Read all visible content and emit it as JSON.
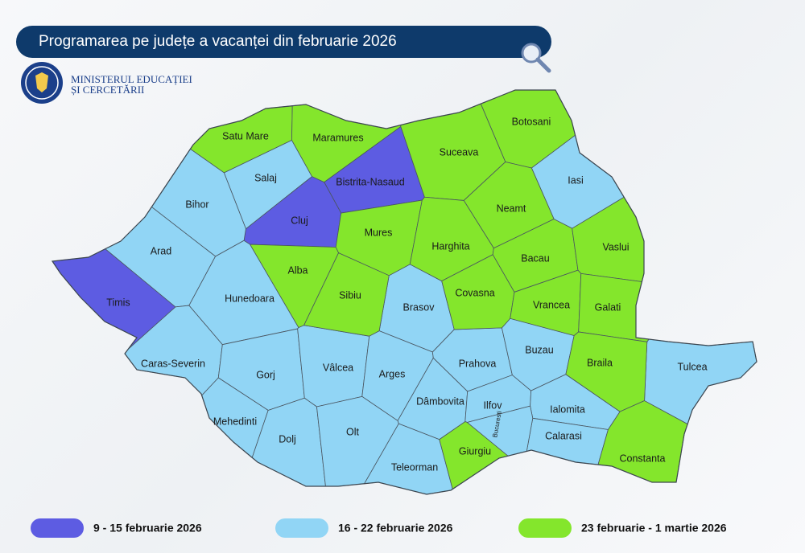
{
  "header": {
    "title": "Programarea pe județe a vacanței din februarie 2026",
    "ministry": [
      "MINISTERUL EDUCAȚIEI",
      "ȘI CERCETĂRII"
    ]
  },
  "legend": [
    {
      "label": "9 - 15 februarie 2026",
      "color": "#5d5ce2",
      "counties": [
        "Bistrita-Nasaud",
        "Cluj",
        "Timis"
      ]
    },
    {
      "label": "16 - 22 februarie 2026",
      "color": "#91d5f5",
      "counties": [
        "Iasi",
        "Salaj",
        "Bihor",
        "Arad",
        "Hunedoara",
        "Brasov",
        "Caras-Severin",
        "Gorj",
        "Vâlcea",
        "Arges",
        "Prahova",
        "Buzau",
        "Tulcea",
        "Mehedinti",
        "Dâmbovita",
        "Ilfov",
        "Ialomita",
        "Dolj",
        "Olt",
        "Calarasi",
        "Teleorman",
        "Bucuresti"
      ]
    },
    {
      "label": "23 februarie - 1 martie 2026",
      "color": "#84e62c",
      "counties": [
        "Satu Mare",
        "Maramures",
        "Suceava",
        "Botosani",
        "Neamt",
        "Mures",
        "Harghita",
        "Alba",
        "Bacau",
        "Vaslui",
        "Sibiu",
        "Covasna",
        "Vrancea",
        "Galati",
        "Braila",
        "Giurgiu",
        "Constanta"
      ]
    }
  ]
}
